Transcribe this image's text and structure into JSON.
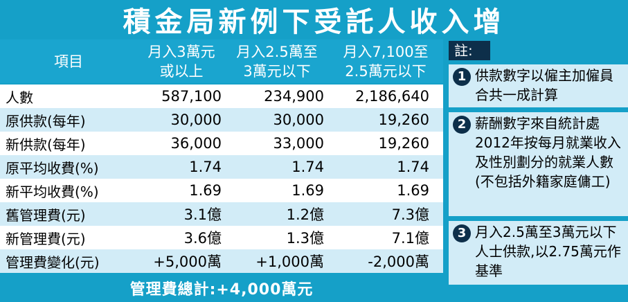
{
  "title": "積金局新例下受託人收入增",
  "table": {
    "headers": [
      {
        "line1": "項目",
        "line2": ""
      },
      {
        "line1": "月入3萬元",
        "line2": "或以上"
      },
      {
        "line1": "月入2.5萬至",
        "line2": "3萬元以下"
      },
      {
        "line1": "月入7,100至",
        "line2": "2.5萬元以下"
      }
    ],
    "rows": [
      {
        "label": "人數",
        "v1": "587,100",
        "v2": "234,900",
        "v3": "2,186,640"
      },
      {
        "label": "原供款(每年)",
        "v1": "30,000",
        "v2": "30,000",
        "v3": "19,260"
      },
      {
        "label": "新供款(每年)",
        "v1": "36,000",
        "v2": "33,000",
        "v3": "19,260"
      },
      {
        "label": "原平均收費(%)",
        "v1": "1.74",
        "v2": "1.74",
        "v3": "1.74"
      },
      {
        "label": "新平均收費(%)",
        "v1": "1.69",
        "v2": "1.69",
        "v3": "1.69"
      },
      {
        "label": "舊管理費(元)",
        "v1": "3.1億",
        "v2": "1.2億",
        "v3": "7.3億"
      },
      {
        "label": "新管理費(元)",
        "v1": "3.6億",
        "v2": "1.3億",
        "v3": "7.1億"
      },
      {
        "label": "管理費變化(元)",
        "v1": "+5,000萬",
        "v2": "+1,000萬",
        "v3": "-2,000萬"
      }
    ]
  },
  "total": "管理費總計:+4,000萬元",
  "notes": {
    "heading": "註:",
    "items": [
      {
        "num": "1",
        "text": "供款數字以僱主加僱員合共一成計算"
      },
      {
        "num": "2",
        "text": "薪酬數字來自統計處2012年按每月就業收入及性別劃分的就業人數(不包括外籍家庭傭工)"
      },
      {
        "num": "3",
        "text": "月入2.5萬至3萬元以下人士供款,以2.75萬元作基準"
      }
    ]
  },
  "colors": {
    "accent": "#15a0c8",
    "dark": "#0d2f4a",
    "light_row": "#d2ecf7"
  }
}
